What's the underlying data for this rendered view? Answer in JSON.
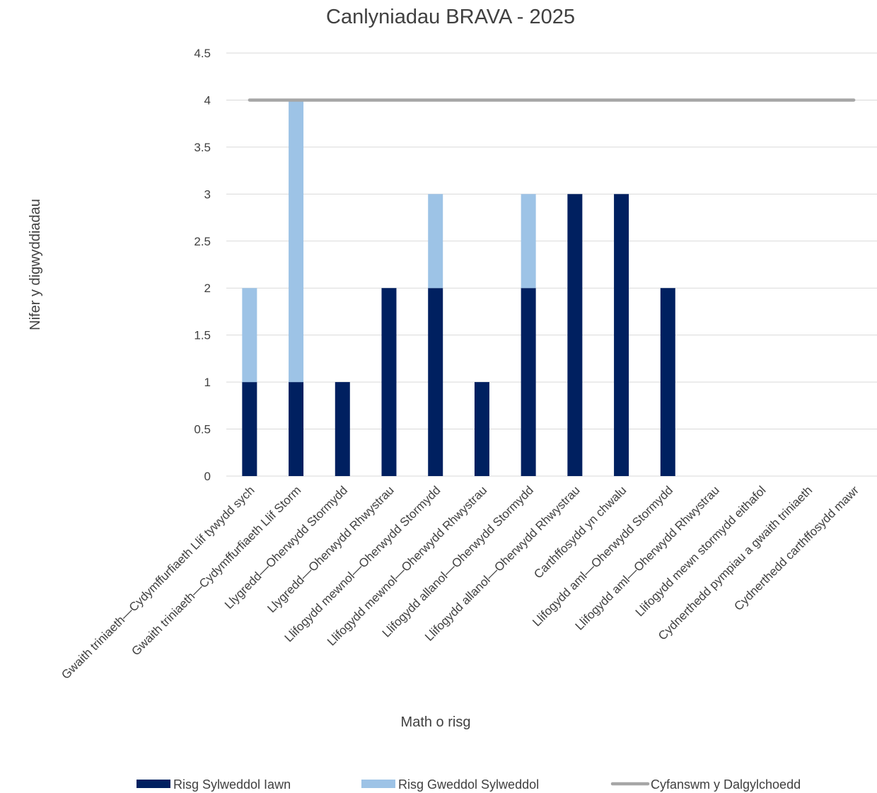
{
  "chart_data": {
    "type": "bar",
    "stacked": true,
    "title": "Canlyniadau BRAVA - 2025",
    "xlabel": "Math o risg",
    "ylabel": "Nifer y digwyddiadau",
    "ylim": [
      0,
      4.5
    ],
    "yticks": [
      "0",
      "0.5",
      "1",
      "1.5",
      "2",
      "2.5",
      "3",
      "3.5",
      "4",
      "4.5"
    ],
    "grid": true,
    "legend_position": "bottom",
    "categories": [
      "Gwaith triniaeth—Cydymffurfiaeth Llif tywydd sych",
      "Gwaith triniaeth—Cydymffurfiaeth Llif Storm",
      "Llygredd—Oherwydd Stormydd",
      "Llygredd—Oherwydd Rhwystrau",
      "Llifogydd mewnol—Oherwydd Stormydd",
      "Llifogydd mewnol—Oherwydd Rhwystrau",
      "Llifogydd allanol—Oherwydd Stormydd",
      "Llifogydd allanol—Oherwydd Rhwystrau",
      "Carthffosydd yn chwalu",
      "Llifogydd aml—Oherwydd Stormydd",
      "Llifogydd aml—Oherwydd Rhwystrau",
      "Llifogydd mewn stormydd eithafol",
      "Cydnerthedd pympiau a gwaith triniaeth",
      "Cydnerthedd carthffosydd mawr"
    ],
    "series": [
      {
        "name": "Risg Sylweddol Iawn",
        "kind": "bar",
        "color": "#002060",
        "values": [
          1,
          1,
          1,
          2,
          2,
          1,
          2,
          3,
          3,
          2,
          0,
          0,
          0,
          0
        ]
      },
      {
        "name": "Risg Gweddol Sylweddol",
        "kind": "bar",
        "color": "#9DC3E6",
        "values": [
          1,
          3,
          0,
          0,
          1,
          0,
          1,
          0,
          0,
          0,
          0,
          0,
          0,
          0
        ]
      },
      {
        "name": "Cyfanswm y Dalgylchoedd",
        "kind": "line",
        "color": "#A6A6A6",
        "values": [
          4,
          4,
          4,
          4,
          4,
          4,
          4,
          4,
          4,
          4,
          4,
          4,
          4,
          4
        ]
      }
    ]
  }
}
